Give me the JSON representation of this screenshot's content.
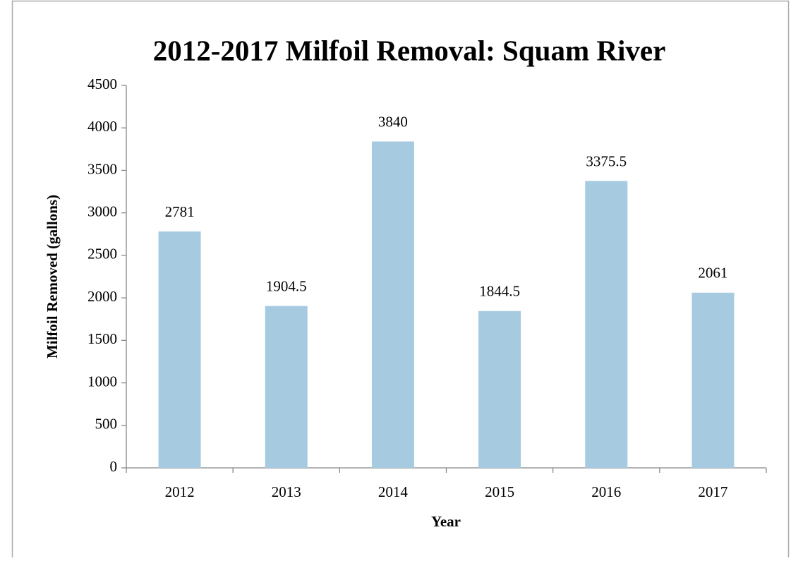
{
  "chart_data": {
    "type": "bar",
    "title": "2012-2017 Milfoil Removal: Squam River",
    "xlabel": "Year",
    "ylabel": "Milfoil Removed (gallons)",
    "categories": [
      "2012",
      "2013",
      "2014",
      "2015",
      "2016",
      "2017"
    ],
    "values": [
      2781,
      1904.5,
      3840,
      1844.5,
      3375.5,
      2061
    ],
    "color": "#a6cbe0",
    "ylim": [
      0,
      4500
    ],
    "yticks": [
      0,
      500,
      1000,
      1500,
      2000,
      2500,
      3000,
      3500,
      4000,
      4500
    ],
    "grid": false
  }
}
